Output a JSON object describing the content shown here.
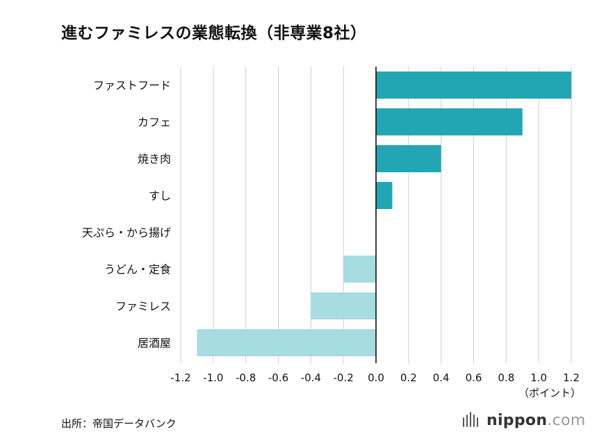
{
  "title": "進むファミレスの業態転換（非専業8社）",
  "source": "出所：帝国データバンク",
  "brand": {
    "name": "nippon",
    "tld": ".com"
  },
  "colors": {
    "positive": "#22a6b3",
    "negative": "#a7dce1",
    "grid": "#cccccc",
    "axis": "#000000"
  },
  "chart_data": {
    "type": "bar",
    "orientation": "horizontal",
    "categories": [
      "ファストフード",
      "カフェ",
      "焼き肉",
      "すし",
      "天ぷら・から揚げ",
      "うどん・定食",
      "ファミレス",
      "居酒屋"
    ],
    "values": [
      1.2,
      0.9,
      0.4,
      0.1,
      0,
      -0.2,
      -0.4,
      -1.1
    ],
    "xlim": [
      -1.2,
      1.2
    ],
    "xticks": [
      "-1.2",
      "-1.0",
      "-0.8",
      "-0.6",
      "-0.4",
      "-0.2",
      "0.0",
      "0.2",
      "0.4",
      "0.6",
      "0.8",
      "1.0",
      "1.2"
    ],
    "xunit": "（ポイント）",
    "grid": true
  }
}
